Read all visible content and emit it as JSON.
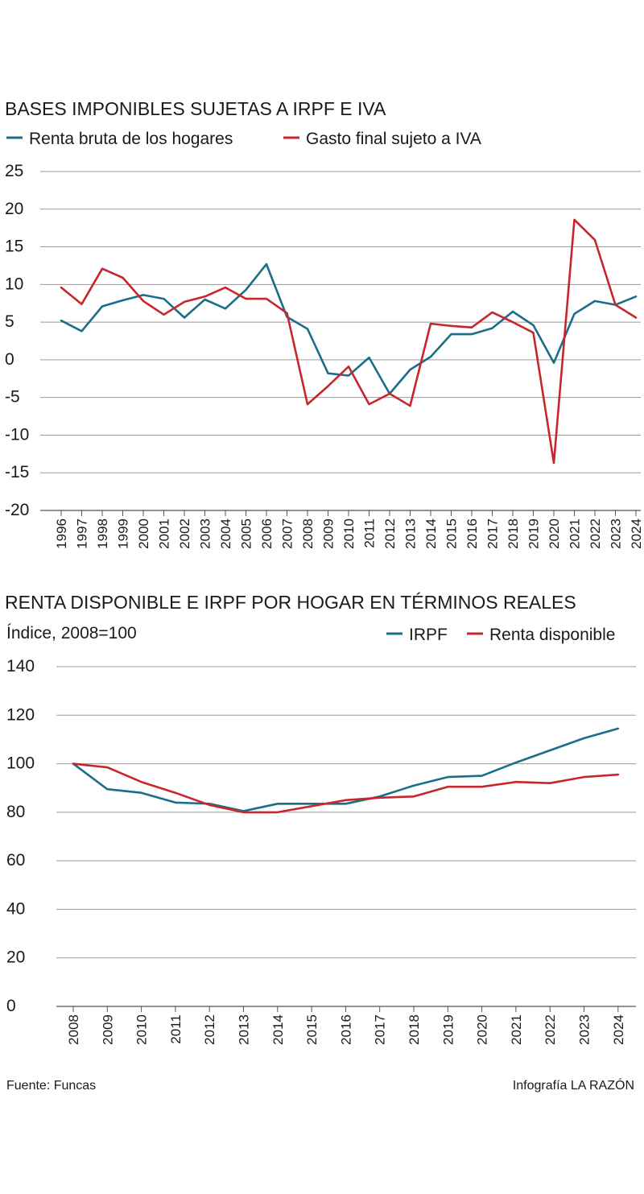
{
  "colors": {
    "teal": "#1b6e87",
    "red": "#c8262d"
  },
  "chart_data": [
    {
      "type": "line",
      "title": "BASES IMPONIBLES SUJETAS A IRPF E IVA",
      "xlabel": "",
      "ylabel": "",
      "ylim": [
        -20,
        25
      ],
      "yticks": [
        "25",
        "20",
        "15",
        "10",
        "5",
        "0",
        "-5",
        "-10",
        "-15",
        "-20"
      ],
      "grid": true,
      "legend_position": "top-left",
      "categories": [
        "1996",
        "1997",
        "1998",
        "1999",
        "2000",
        "2001",
        "2002",
        "2003",
        "2004",
        "2005",
        "2006",
        "2007",
        "2008",
        "2009",
        "2010",
        "2011",
        "2012",
        "2013",
        "2014",
        "2015",
        "2016",
        "2017",
        "2018",
        "2019",
        "2020",
        "2021",
        "2022",
        "2023",
        "2024"
      ],
      "series": [
        {
          "name": "Renta bruta de los hogares",
          "color": "#1b6e87",
          "values": [
            5.2,
            3.8,
            7.1,
            7.9,
            8.6,
            8.1,
            5.6,
            8.0,
            6.8,
            9.3,
            12.7,
            5.7,
            4.1,
            -1.8,
            -2.1,
            0.3,
            -4.5,
            -1.3,
            0.4,
            3.4,
            3.4,
            4.2,
            6.4,
            4.6,
            -0.4,
            6.1,
            7.8,
            7.3,
            8.4
          ]
        },
        {
          "name": "Gasto final sujeto a IVA",
          "color": "#c8262d",
          "values": [
            9.6,
            7.4,
            12.1,
            10.9,
            7.8,
            6.0,
            7.7,
            8.4,
            9.6,
            8.1,
            8.1,
            6.2,
            -5.9,
            -3.5,
            -0.9,
            -5.9,
            -4.5,
            -6.1,
            4.8,
            4.5,
            4.3,
            6.3,
            5.0,
            3.6,
            -13.7,
            18.6,
            15.9,
            7.3,
            5.6
          ]
        }
      ]
    },
    {
      "type": "line",
      "title": "RENTA DISPONIBLE E IRPF POR HOGAR EN TÉRMINOS REALES",
      "subtitle": "Índice, 2008=100",
      "xlabel": "",
      "ylabel": "",
      "ylim": [
        0,
        140
      ],
      "yticks": [
        "140",
        "120",
        "100",
        "80",
        "60",
        "40",
        "20",
        "0"
      ],
      "grid": true,
      "legend_position": "top-right",
      "categories": [
        "2008",
        "2009",
        "2010",
        "2011",
        "2012",
        "2013",
        "2014",
        "2015",
        "2016",
        "2017",
        "2018",
        "2019",
        "2020",
        "2021",
        "2022",
        "2023",
        "2024"
      ],
      "series": [
        {
          "name": "IRPF",
          "color": "#1b6e87",
          "values": [
            100,
            89.5,
            88,
            84,
            83.5,
            80.5,
            83.5,
            83.5,
            83.5,
            86.5,
            91,
            94.5,
            95,
            100.5,
            105.5,
            110.5,
            114.5
          ]
        },
        {
          "name": "Renta disponible",
          "color": "#c8262d",
          "values": [
            100,
            98.5,
            92.5,
            88,
            83,
            80,
            80,
            82.5,
            85,
            86,
            86.5,
            90.5,
            90.5,
            92.5,
            92,
            94.5,
            95.5
          ]
        }
      ]
    }
  ],
  "footer": {
    "source": "Fuente: Funcas",
    "credit": "Infografía LA RAZÓN"
  }
}
